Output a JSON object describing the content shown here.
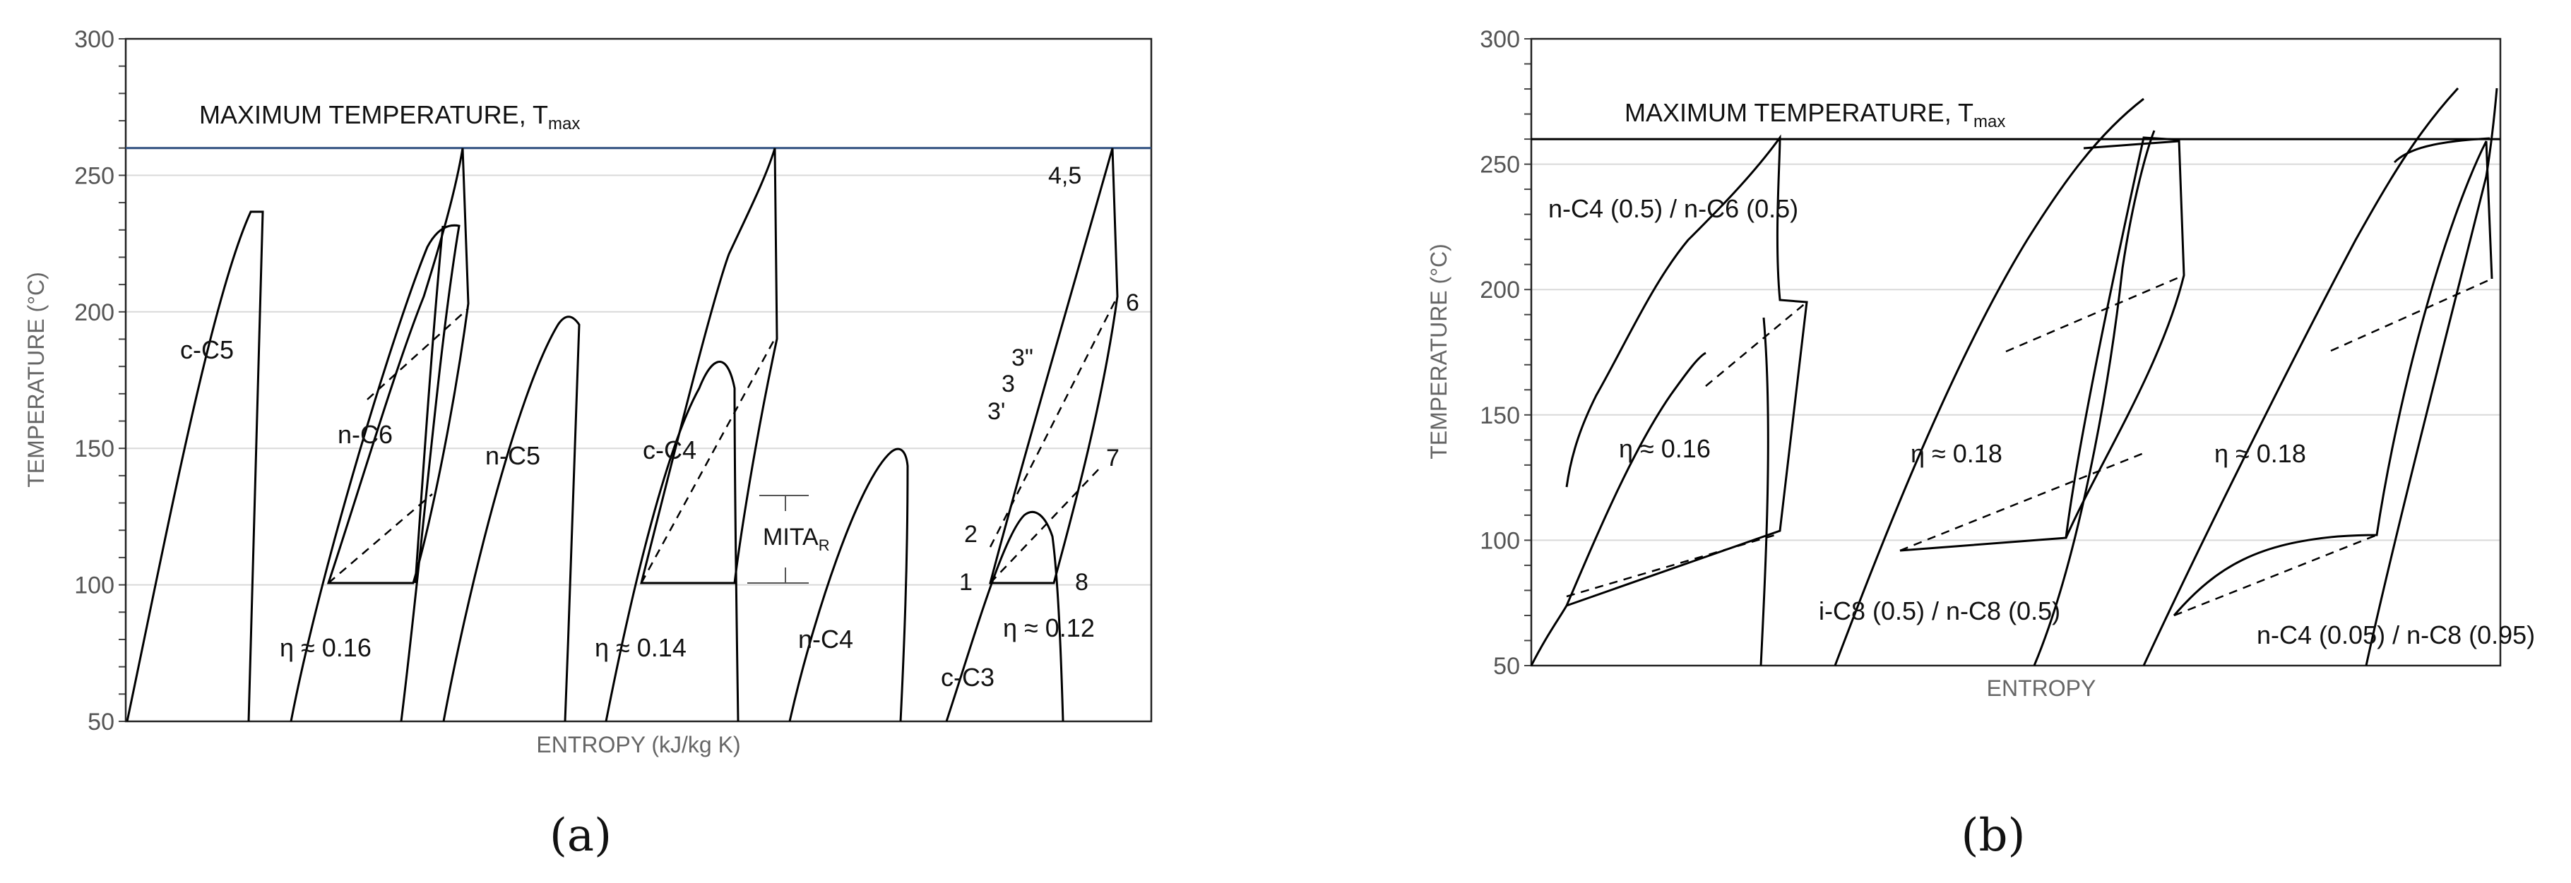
{
  "chart_data": [
    {
      "type": "line",
      "panel_label": "(a)",
      "xlabel": "ENTROPY (kJ/kg K)",
      "ylabel": "TEMPERATURE (°C)",
      "ylim": [
        50,
        300
      ],
      "yticks": [
        "50",
        "100",
        "150",
        "200",
        "250",
        "300"
      ],
      "grid": true,
      "max_temperature": 260,
      "max_temp_label": "MAXIMUM TEMPERATURE, T",
      "max_temp_sub": "max",
      "mita_label": "MITA",
      "mita_sub": "R",
      "dome_labels": [
        "c-C5",
        "n-C6",
        "n-C5",
        "c-C4",
        "n-C4",
        "c-C3"
      ],
      "efficiency_labels": [
        "η ≈ 0.16",
        "η ≈ 0.14",
        "η ≈ 0.12"
      ],
      "state_points": [
        "1",
        "2",
        "3'",
        "3",
        "3\"",
        "4,5",
        "6",
        "7",
        "8"
      ]
    },
    {
      "type": "line",
      "panel_label": "(b)",
      "xlabel": "ENTROPY",
      "ylabel": "TEMPERATURE (°C)",
      "ylim": [
        50,
        300
      ],
      "yticks": [
        "50",
        "100",
        "150",
        "200",
        "250",
        "300"
      ],
      "grid": true,
      "max_temperature": 260,
      "max_temp_label": "MAXIMUM TEMPERATURE, T",
      "max_temp_sub": "max",
      "mixture_labels": [
        "n-C4 (0.5) / n-C6 (0.5)",
        "i-C8 (0.5) / n-C8 (0.5)",
        "n-C4 (0.05) / n-C8 (0.95)"
      ],
      "efficiency_labels": [
        "η ≈ 0.16",
        "η ≈ 0.18",
        "η ≈ 0.18"
      ]
    }
  ],
  "colors": {
    "tmax_line_a": "#2f4f7f",
    "curve": "#000000",
    "grid": "#d9d9d9"
  }
}
